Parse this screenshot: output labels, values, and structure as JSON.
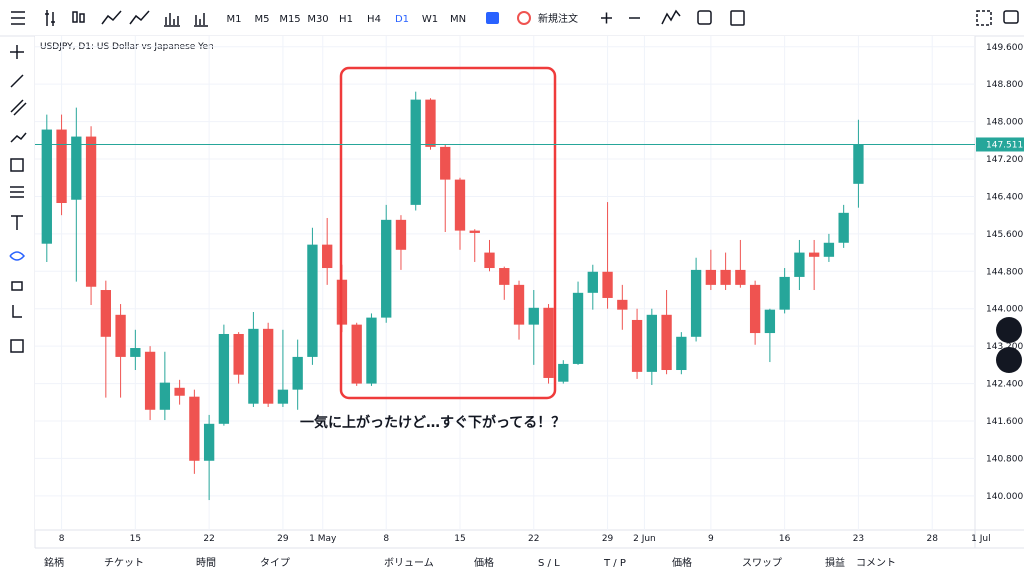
{
  "toolbar": {
    "timeframes": [
      "M1",
      "M5",
      "M15",
      "M30",
      "H1",
      "H4",
      "D1",
      "W1",
      "MN"
    ],
    "active_timeframe": "D1",
    "order_button": "新規注文"
  },
  "chart_data": {
    "type": "candlestick",
    "title": "USDJPY, D1: US Dollar vs Japanese Yen",
    "up_color": "#26a69a",
    "down_color": "#ef5350",
    "x": [
      0,
      1,
      2,
      3,
      4,
      5,
      6,
      7,
      8,
      9,
      10,
      11,
      12,
      13,
      14,
      15,
      16,
      17,
      18,
      19,
      20,
      21,
      22,
      23,
      24,
      25,
      26,
      27,
      28,
      29,
      30,
      31,
      32,
      33,
      34,
      35,
      36,
      37,
      38,
      39,
      40,
      41,
      42,
      43,
      44,
      45,
      46,
      47,
      48,
      49,
      50,
      51,
      52,
      53,
      54,
      55
    ],
    "open": [
      145.39,
      147.83,
      146.33,
      147.68,
      144.4,
      143.87,
      142.97,
      143.08,
      141.84,
      142.31,
      142.12,
      140.75,
      141.54,
      143.46,
      141.97,
      143.57,
      141.97,
      142.27,
      142.97,
      145.37,
      144.62,
      143.66,
      142.4,
      143.81,
      145.9,
      146.22,
      148.47,
      147.46,
      146.76,
      145.67,
      145.2,
      144.87,
      144.51,
      143.66,
      144.02,
      142.44,
      142.82,
      144.34,
      144.79,
      144.19,
      143.76,
      142.65,
      143.87,
      142.69,
      143.4,
      144.83,
      144.83,
      144.83,
      144.51,
      143.48,
      143.98,
      144.68,
      145.2,
      145.11,
      145.41,
      146.67
    ],
    "high": [
      148.15,
      148.15,
      148.3,
      147.9,
      144.6,
      144.1,
      143.55,
      143.2,
      143.08,
      142.48,
      142.27,
      141.73,
      143.66,
      143.5,
      143.93,
      143.7,
      143.55,
      143.34,
      145.73,
      145.94,
      144.94,
      143.7,
      143.9,
      146.22,
      146.0,
      148.64,
      148.5,
      147.5,
      146.8,
      145.7,
      145.47,
      144.9,
      144.6,
      144.4,
      144.1,
      142.9,
      144.58,
      144.94,
      146.28,
      144.51,
      144.0,
      144.0,
      144.4,
      143.5,
      145.09,
      145.26,
      145.2,
      145.47,
      144.6,
      144.0,
      144.87,
      145.47,
      145.47,
      145.6,
      146.22,
      148.04
    ],
    "low": [
      145.0,
      146.0,
      144.58,
      144.08,
      142.1,
      142.1,
      142.69,
      141.62,
      141.62,
      141.95,
      140.47,
      139.91,
      141.5,
      142.4,
      141.9,
      141.9,
      141.9,
      141.84,
      142.8,
      144.51,
      143.5,
      142.35,
      142.35,
      143.7,
      144.83,
      146.1,
      147.4,
      145.64,
      145.26,
      145.0,
      144.8,
      144.19,
      143.34,
      142.8,
      142.4,
      142.4,
      142.8,
      143.98,
      144.0,
      143.55,
      142.5,
      142.37,
      142.6,
      142.6,
      143.3,
      144.4,
      144.4,
      144.45,
      143.23,
      142.86,
      143.9,
      144.4,
      144.4,
      145.0,
      145.3,
      146.16
    ],
    "close": [
      147.83,
      146.26,
      147.68,
      144.47,
      143.4,
      142.97,
      143.16,
      141.84,
      142.42,
      142.14,
      140.75,
      141.54,
      143.46,
      142.59,
      143.57,
      141.97,
      142.27,
      142.97,
      145.37,
      144.87,
      143.66,
      142.4,
      143.81,
      145.9,
      145.26,
      148.47,
      147.46,
      146.76,
      145.67,
      145.62,
      144.87,
      144.51,
      143.66,
      144.02,
      142.52,
      142.82,
      144.34,
      144.79,
      144.23,
      143.98,
      142.65,
      143.87,
      142.69,
      143.4,
      144.83,
      144.51,
      144.51,
      144.51,
      143.48,
      143.98,
      144.68,
      145.2,
      145.11,
      145.41,
      146.05,
      147.51
    ],
    "xlim": [
      -0.8,
      62.9
    ],
    "ylim": [
      139.27,
      149.83
    ],
    "xticks": [
      {
        "value": 1,
        "label": "8"
      },
      {
        "value": 6,
        "label": "15"
      },
      {
        "value": 11,
        "label": "22"
      },
      {
        "value": 16,
        "label": "29"
      },
      {
        "value": 18.7,
        "label": "1 May"
      },
      {
        "value": 23,
        "label": "8"
      },
      {
        "value": 28,
        "label": "15"
      },
      {
        "value": 33,
        "label": "22"
      },
      {
        "value": 38,
        "label": "29"
      },
      {
        "value": 40.5,
        "label": "2 Jun"
      },
      {
        "value": 45,
        "label": "9"
      },
      {
        "value": 50,
        "label": "16"
      },
      {
        "value": 55,
        "label": "23"
      },
      {
        "value": 60,
        "label": "28"
      },
      {
        "value": 63.3,
        "label": "1 Jul"
      }
    ],
    "yticks": [
      {
        "value": 140,
        "label": "140.000"
      },
      {
        "value": 140.8,
        "label": "140.800"
      },
      {
        "value": 141.6,
        "label": "141.600"
      },
      {
        "value": 142.4,
        "label": "142.400"
      },
      {
        "value": 143.2,
        "label": "143.200"
      },
      {
        "value": 144,
        "label": "144.000"
      },
      {
        "value": 144.8,
        "label": "144.800"
      },
      {
        "value": 145.6,
        "label": "145.600"
      },
      {
        "value": 146.4,
        "label": "146.400"
      },
      {
        "value": 147.2,
        "label": "147.200"
      },
      {
        "value": 148,
        "label": "148.000"
      },
      {
        "value": 148.8,
        "label": "148.800"
      },
      {
        "value": 149.6,
        "label": "149.600"
      }
    ],
    "last_price": {
      "value": 147.511,
      "label": "147.511"
    },
    "annotation": "一気に上がったけど…すぐ下がってる！？"
  },
  "columns": [
    "銘柄",
    "チケット",
    "時間",
    "タイプ",
    "ボリューム",
    "価格",
    "S / L",
    "T / P",
    "価格",
    "スワップ",
    "損益",
    "コメント"
  ]
}
